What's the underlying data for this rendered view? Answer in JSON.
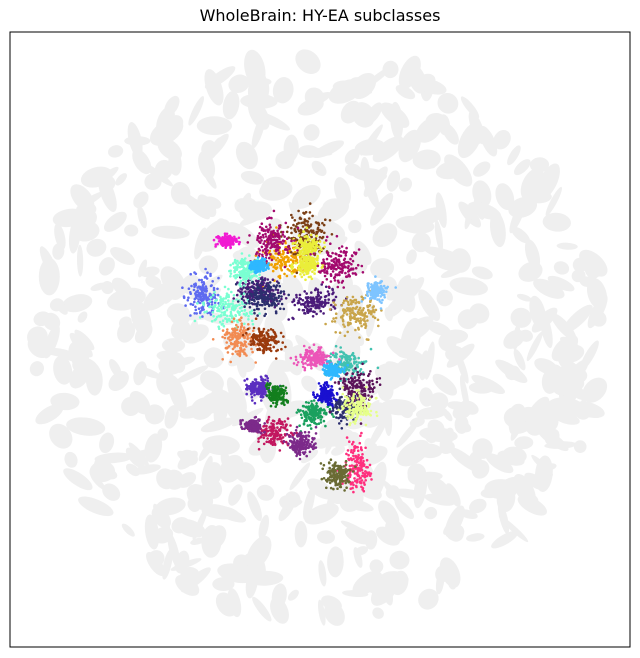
{
  "chart_data": {
    "type": "scatter",
    "title": "WholeBrain: HY-EA subclasses",
    "xlabel": "",
    "ylabel": "",
    "axes_ticks": "none",
    "legend": "none",
    "grid": false,
    "x_range": [
      0,
      1
    ],
    "y_range": [
      0,
      1
    ],
    "background_color": "#efefef",
    "series": [
      {
        "color": "#f0a000",
        "clusters": [
          [
            0.44,
            0.63,
            0.04,
            0.03
          ]
        ]
      },
      {
        "color": "#4b1b7a",
        "clusters": [
          [
            0.4,
            0.58,
            0.03,
            0.02
          ],
          [
            0.49,
            0.56,
            0.04,
            0.02
          ]
        ]
      },
      {
        "color": "#7b3f16",
        "clusters": [
          [
            0.48,
            0.67,
            0.03,
            0.04
          ]
        ]
      },
      {
        "color": "#eaee3a",
        "clusters": [
          [
            0.48,
            0.65,
            0.02,
            0.02
          ],
          [
            0.48,
            0.62,
            0.02,
            0.015
          ]
        ]
      },
      {
        "color": "#a30a6e",
        "clusters": [
          [
            0.42,
            0.66,
            0.03,
            0.03
          ],
          [
            0.53,
            0.62,
            0.03,
            0.03
          ]
        ]
      },
      {
        "color": "#5e6bf0",
        "clusters": [
          [
            0.31,
            0.57,
            0.025,
            0.03
          ]
        ]
      },
      {
        "color": "#7affd2",
        "clusters": [
          [
            0.35,
            0.55,
            0.04,
            0.03
          ],
          [
            0.38,
            0.61,
            0.02,
            0.02
          ]
        ]
      },
      {
        "color": "#c9a54b",
        "clusters": [
          [
            0.56,
            0.54,
            0.04,
            0.03
          ]
        ]
      },
      {
        "color": "#f28b52",
        "clusters": [
          [
            0.37,
            0.5,
            0.025,
            0.03
          ]
        ]
      },
      {
        "color": "#9a3a0d",
        "clusters": [
          [
            0.41,
            0.5,
            0.025,
            0.02
          ]
        ]
      },
      {
        "color": "#2c2f6e",
        "clusters": [
          [
            0.41,
            0.57,
            0.03,
            0.025
          ],
          [
            0.54,
            0.39,
            0.025,
            0.02
          ]
        ]
      },
      {
        "color": "#42c2b0",
        "clusters": [
          [
            0.54,
            0.46,
            0.03,
            0.02
          ]
        ]
      },
      {
        "color": "#ec55b8",
        "clusters": [
          [
            0.49,
            0.47,
            0.025,
            0.015
          ]
        ]
      },
      {
        "color": "#5a2ec0",
        "clusters": [
          [
            0.4,
            0.42,
            0.02,
            0.015
          ]
        ]
      },
      {
        "color": "#137f1e",
        "clusters": [
          [
            0.43,
            0.41,
            0.015,
            0.015
          ]
        ]
      },
      {
        "color": "#c2175f",
        "clusters": [
          [
            0.43,
            0.35,
            0.03,
            0.02
          ]
        ]
      },
      {
        "color": "#5b1459",
        "clusters": [
          [
            0.56,
            0.42,
            0.03,
            0.03
          ]
        ]
      },
      {
        "color": "#e6ff8a",
        "clusters": [
          [
            0.56,
            0.39,
            0.025,
            0.025
          ]
        ]
      },
      {
        "color": "#ff2f7e",
        "clusters": [
          [
            0.56,
            0.29,
            0.02,
            0.04
          ]
        ]
      },
      {
        "color": "#6a6b34",
        "clusters": [
          [
            0.53,
            0.28,
            0.02,
            0.02
          ]
        ]
      },
      {
        "color": "#2eb8ff",
        "clusters": [
          [
            0.52,
            0.45,
            0.015,
            0.01
          ],
          [
            0.4,
            0.62,
            0.015,
            0.01
          ]
        ]
      },
      {
        "color": "#1aa05e",
        "clusters": [
          [
            0.49,
            0.38,
            0.02,
            0.02
          ]
        ]
      },
      {
        "color": "#7c2a8a",
        "clusters": [
          [
            0.47,
            0.33,
            0.02,
            0.02
          ],
          [
            0.39,
            0.36,
            0.015,
            0.01
          ]
        ]
      },
      {
        "color": "#7ec4ff",
        "clusters": [
          [
            0.59,
            0.58,
            0.015,
            0.015
          ]
        ]
      },
      {
        "color": "#1a10d0",
        "clusters": [
          [
            0.51,
            0.41,
            0.015,
            0.015
          ]
        ]
      },
      {
        "color": "#f11ad2",
        "clusters": [
          [
            0.35,
            0.66,
            0.015,
            0.008
          ]
        ]
      }
    ]
  }
}
